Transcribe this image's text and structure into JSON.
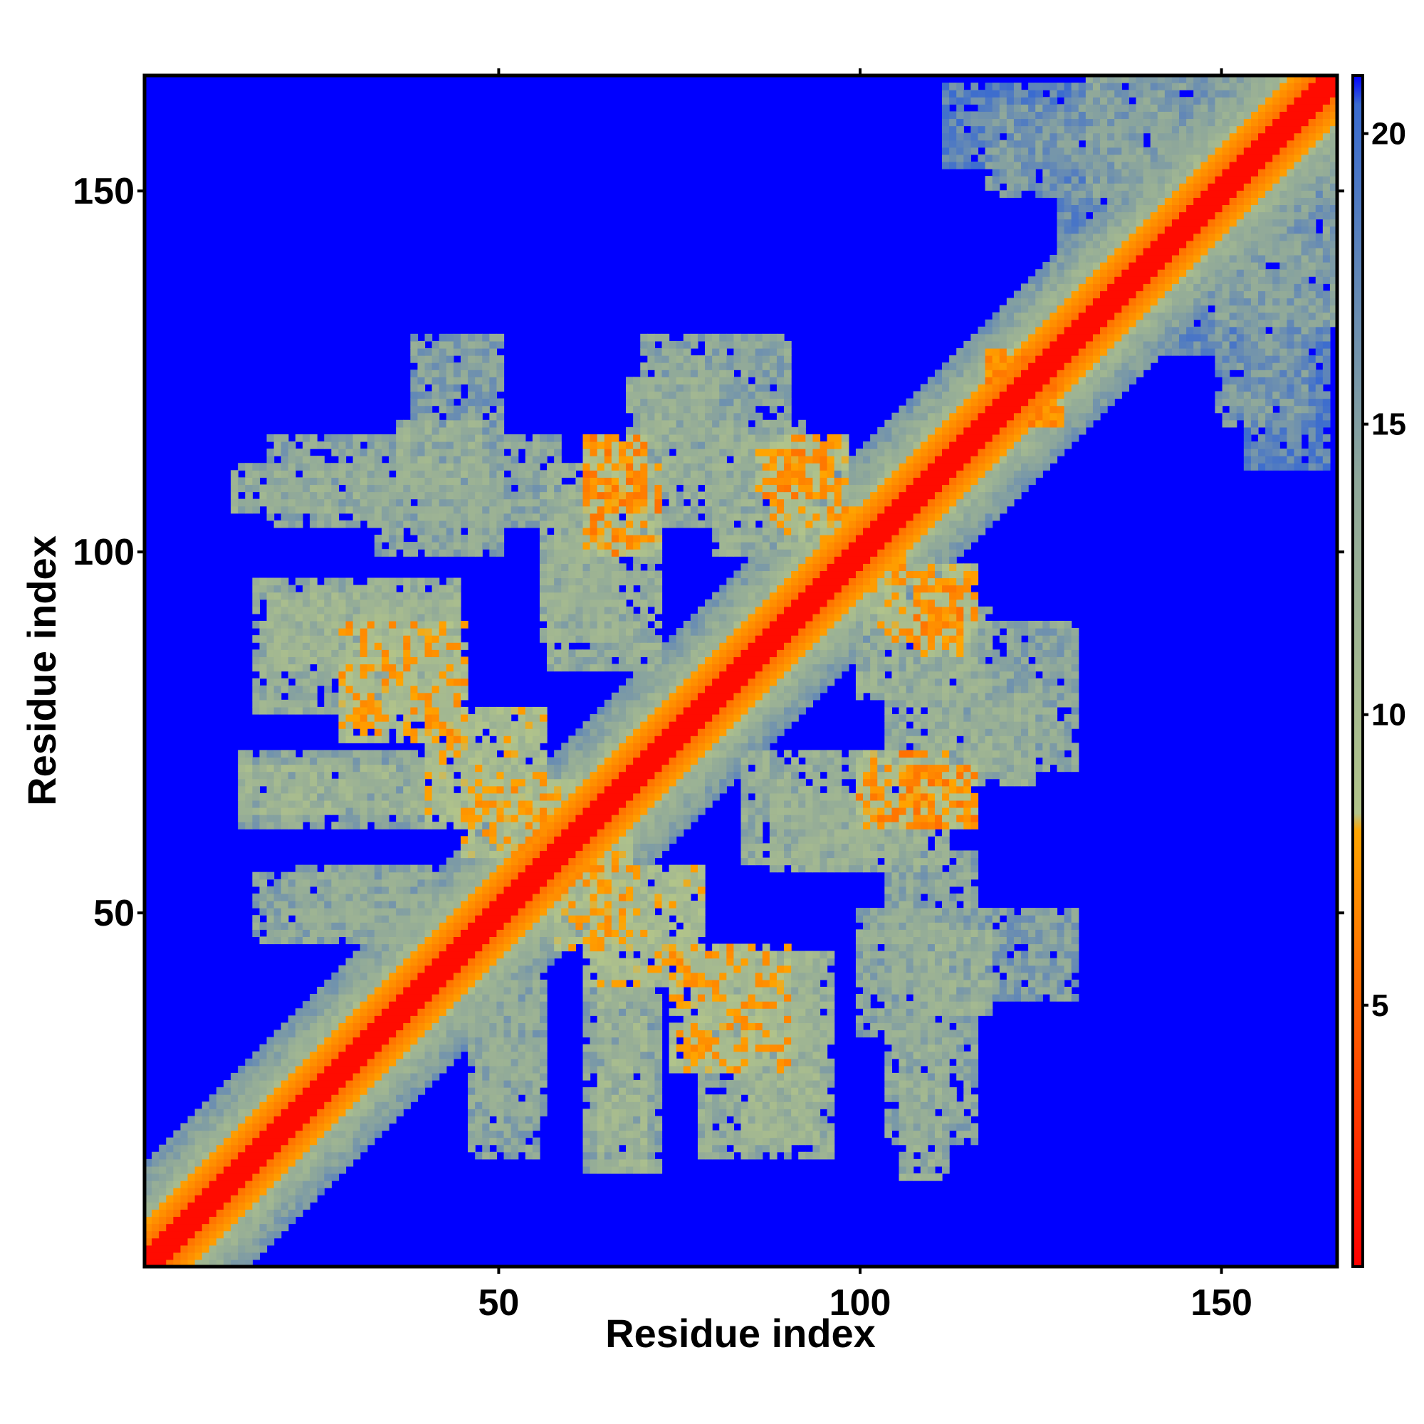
{
  "chart_data": {
    "type": "heatmap",
    "title": "",
    "xlabel": "Residue index",
    "ylabel": "Residue index",
    "xlim": [
      1,
      166
    ],
    "ylim": [
      1,
      166
    ],
    "x_ticks": [
      50,
      100,
      150
    ],
    "y_ticks": [
      50,
      100,
      150
    ],
    "colorbar": {
      "range": [
        0.5,
        21.0
      ],
      "ticks": [
        5,
        10,
        15,
        20
      ],
      "stops": [
        {
          "value": 0.5,
          "color": "#ff0000"
        },
        {
          "value": 8.0,
          "color": "#ffa500"
        },
        {
          "value": 8.3,
          "color": "#b2c48a"
        },
        {
          "value": 14.0,
          "color": "#8fa89a"
        },
        {
          "value": 20.5,
          "color": "#3a6bd0"
        },
        {
          "value": 21.0,
          "color": "#0000ff"
        }
      ]
    },
    "background_value": 21.0,
    "diagonal_band": {
      "core_width": 2,
      "inner_width": 6,
      "outer_width": 14
    },
    "contact_bands": [
      {
        "x_start": 13,
        "x_end": 33,
        "y_start": 106,
        "y_end": 112,
        "value": 13
      },
      {
        "x_start": 33,
        "x_end": 50,
        "y_start": 100,
        "y_end": 110,
        "value": 14
      },
      {
        "x_start": 18,
        "x_end": 44,
        "y_start": 84,
        "y_end": 94,
        "value": 12
      },
      {
        "x_start": 28,
        "x_end": 45,
        "y_start": 74,
        "y_end": 90,
        "value": 9
      },
      {
        "x_start": 14,
        "x_end": 42,
        "y_start": 64,
        "y_end": 70,
        "value": 12
      },
      {
        "x_start": 16,
        "x_end": 50,
        "y_start": 46,
        "y_end": 55,
        "value": 14
      },
      {
        "x_start": 45,
        "x_end": 60,
        "y_start": 58,
        "y_end": 68,
        "value": 9
      },
      {
        "x_start": 62,
        "x_end": 72,
        "y_start": 100,
        "y_end": 112,
        "value": 8
      },
      {
        "x_start": 57,
        "x_end": 72,
        "y_start": 84,
        "y_end": 112,
        "value": 13
      },
      {
        "x_start": 70,
        "x_end": 90,
        "y_start": 110,
        "y_end": 130,
        "value": 14
      },
      {
        "x_start": 86,
        "x_end": 96,
        "y_start": 108,
        "y_end": 114,
        "value": 8
      },
      {
        "x_start": 90,
        "x_end": 106,
        "y_start": 96,
        "y_end": 106,
        "value": 10
      },
      {
        "x_start": 104,
        "x_end": 116,
        "y_start": 88,
        "y_end": 98,
        "value": 9
      },
      {
        "x_start": 100,
        "x_end": 118,
        "y_start": 80,
        "y_end": 92,
        "value": 13
      },
      {
        "x_start": 104,
        "x_end": 124,
        "y_start": 68,
        "y_end": 80,
        "value": 13
      },
      {
        "x_start": 106,
        "x_end": 116,
        "y_start": 62,
        "y_end": 70,
        "value": 8
      },
      {
        "x_start": 88,
        "x_end": 108,
        "y_start": 56,
        "y_end": 66,
        "value": 13
      },
      {
        "x_start": 62,
        "x_end": 78,
        "y_start": 40,
        "y_end": 56,
        "value": 10
      },
      {
        "x_start": 62,
        "x_end": 72,
        "y_start": 14,
        "y_end": 40,
        "value": 14
      },
      {
        "x_start": 78,
        "x_end": 96,
        "y_start": 16,
        "y_end": 44,
        "value": 13
      },
      {
        "x_start": 46,
        "x_end": 56,
        "y_start": 22,
        "y_end": 40,
        "value": 14
      },
      {
        "x_start": 104,
        "x_end": 116,
        "y_start": 18,
        "y_end": 58,
        "value": 14
      },
      {
        "x_start": 108,
        "x_end": 118,
        "y_start": 36,
        "y_end": 48,
        "value": 13
      },
      {
        "x_start": 116,
        "x_end": 130,
        "y_start": 38,
        "y_end": 50,
        "value": 15
      },
      {
        "x_start": 118,
        "x_end": 128,
        "y_start": 118,
        "y_end": 128,
        "value": 8
      },
      {
        "x_start": 132,
        "x_end": 166,
        "y_start": 150,
        "y_end": 166,
        "value": 15
      },
      {
        "x_start": 150,
        "x_end": 162,
        "y_start": 118,
        "y_end": 150,
        "value": 16
      },
      {
        "x_start": 112,
        "x_end": 134,
        "y_start": 154,
        "y_end": 165,
        "value": 18
      },
      {
        "x_start": 128,
        "x_end": 140,
        "y_start": 140,
        "y_end": 152,
        "value": 17
      }
    ]
  }
}
